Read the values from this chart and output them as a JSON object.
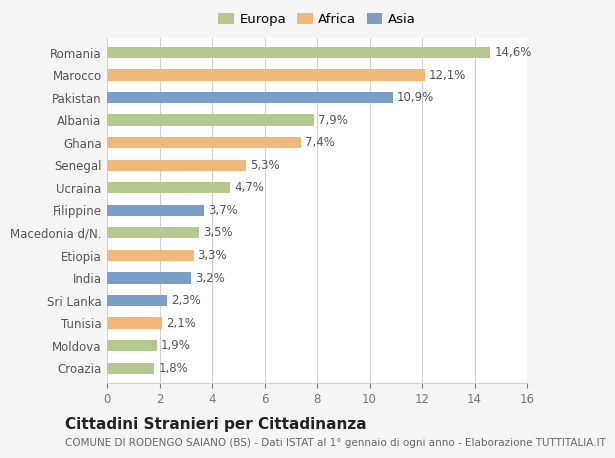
{
  "countries": [
    "Romania",
    "Marocco",
    "Pakistan",
    "Albania",
    "Ghana",
    "Senegal",
    "Ucraina",
    "Filippine",
    "Macedonia d/N.",
    "Etiopia",
    "India",
    "Sri Lanka",
    "Tunisia",
    "Moldova",
    "Croazia"
  ],
  "values": [
    14.6,
    12.1,
    10.9,
    7.9,
    7.4,
    5.3,
    4.7,
    3.7,
    3.5,
    3.3,
    3.2,
    2.3,
    2.1,
    1.9,
    1.8
  ],
  "labels": [
    "14,6%",
    "12,1%",
    "10,9%",
    "7,9%",
    "7,4%",
    "5,3%",
    "4,7%",
    "3,7%",
    "3,5%",
    "3,3%",
    "3,2%",
    "2,3%",
    "2,1%",
    "1,9%",
    "1,8%"
  ],
  "continents": [
    "Europa",
    "Africa",
    "Asia",
    "Europa",
    "Africa",
    "Africa",
    "Europa",
    "Asia",
    "Europa",
    "Africa",
    "Asia",
    "Asia",
    "Africa",
    "Europa",
    "Europa"
  ],
  "colors": {
    "Europa": "#b5c98e",
    "Africa": "#f0b87a",
    "Asia": "#7a9ec6"
  },
  "xlim": [
    0,
    16
  ],
  "xticks": [
    0,
    2,
    4,
    6,
    8,
    10,
    12,
    14,
    16
  ],
  "title": "Cittadini Stranieri per Cittadinanza",
  "subtitle": "COMUNE DI RODENGO SAIANO (BS) - Dati ISTAT al 1° gennaio di ogni anno - Elaborazione TUTTITALIA.IT",
  "background_color": "#f5f5f5",
  "plot_background": "#ffffff",
  "grid_color": "#d0d0d0",
  "bar_height": 0.5,
  "label_fontsize": 8.5,
  "tick_fontsize": 8.5,
  "title_fontsize": 11,
  "subtitle_fontsize": 7.5,
  "legend_fontsize": 9.5
}
